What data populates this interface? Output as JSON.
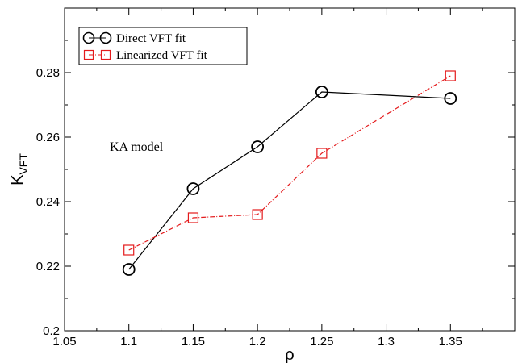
{
  "chart_data": {
    "type": "line",
    "xlabel": "ρ",
    "ylabel_main": "K",
    "ylabel_sub": "VFT",
    "xlim": [
      1.05,
      1.4
    ],
    "ylim": [
      0.2,
      0.3
    ],
    "xticks": [
      1.05,
      1.1,
      1.15,
      1.2,
      1.25,
      1.3,
      1.35
    ],
    "xtick_labels": [
      "1.05",
      "1.1",
      "1.15",
      "1.2",
      "1.25",
      "1.3",
      "1.35"
    ],
    "yticks": [
      0.2,
      0.22,
      0.24,
      0.26,
      0.28
    ],
    "ytick_labels": [
      "0.2",
      "0.22",
      "0.24",
      "0.26",
      "0.28"
    ],
    "grid": false,
    "legend_position": "top-left",
    "annotation": "KA model",
    "series": [
      {
        "name": "Direct VFT fit",
        "color": "#000000",
        "marker": "circle",
        "line_style": "solid",
        "x": [
          1.1,
          1.15,
          1.2,
          1.25,
          1.35
        ],
        "y": [
          0.219,
          0.244,
          0.257,
          0.274,
          0.272
        ]
      },
      {
        "name": "Linearized VFT fit",
        "color": "#e41a1c",
        "marker": "square",
        "line_style": "dash-dot",
        "x": [
          1.1,
          1.15,
          1.2,
          1.25,
          1.35
        ],
        "y": [
          0.225,
          0.235,
          0.236,
          0.255,
          0.279
        ]
      }
    ]
  }
}
